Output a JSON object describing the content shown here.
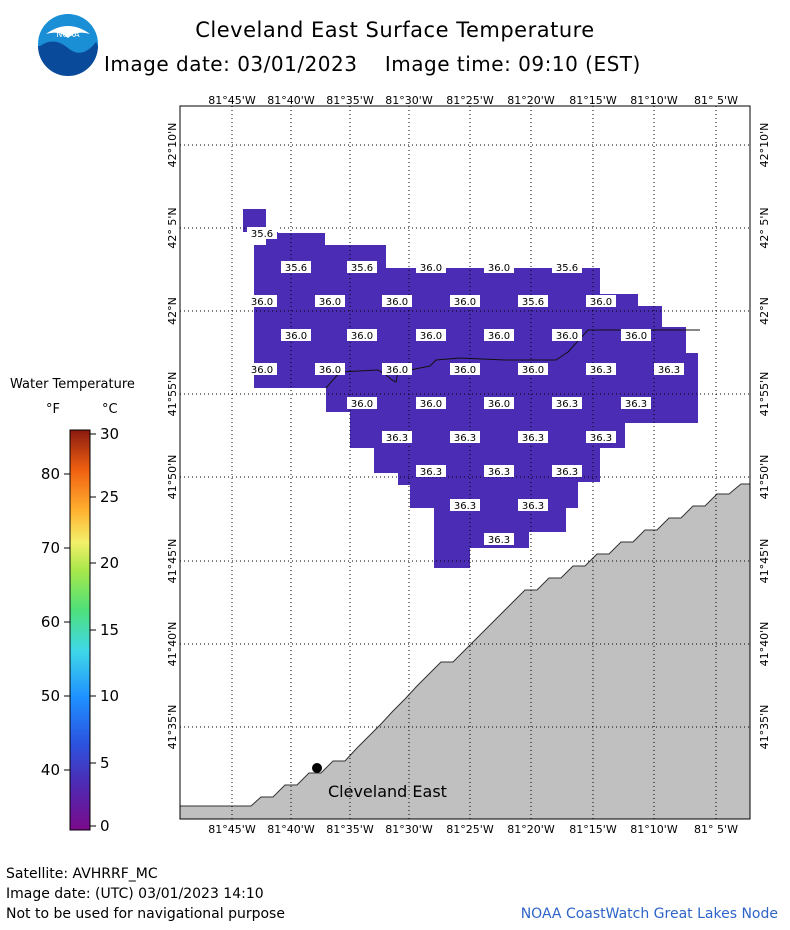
{
  "header": {
    "title": "Cleveland East Surface Temperature",
    "image_date_label": "Image date: 03/01/2023",
    "image_time_label": "Image time: 09:10 (EST)",
    "logo_text": "NOAA"
  },
  "map": {
    "lon_labels": [
      "81°45'W",
      "81°40'W",
      "81°35'W",
      "81°30'W",
      "81°25'W",
      "81°20'W",
      "81°15'W",
      "81°10'W",
      "81° 5'W"
    ],
    "lat_labels": [
      "42°10'N",
      "42° 5'N",
      "42°N",
      "41°55'N",
      "41°50'N",
      "41°45'N",
      "41°40'N",
      "41°35'N"
    ],
    "station": {
      "name": "Cleveland East"
    },
    "water_color": "#4b2cb5",
    "land_color": "#c0c0c0",
    "temperature_labels": [
      {
        "row": 0,
        "values": [
          "35.6"
        ]
      },
      {
        "row": 1,
        "values": [
          "35.6",
          "35.6",
          "36.0",
          "36.0",
          "35.6"
        ]
      },
      {
        "row": 2,
        "values": [
          "36.0",
          "36.0",
          "36.0",
          "36.0",
          "35.6",
          "36.0"
        ]
      },
      {
        "row": 3,
        "values": [
          "36.0",
          "36.0",
          "36.0",
          "36.0",
          "36.0",
          "36.0"
        ]
      },
      {
        "row": 4,
        "values": [
          "36.0",
          "36.0",
          "36.0",
          "36.0",
          "36.0",
          "36.3",
          "36.3"
        ]
      },
      {
        "row": 5,
        "values": [
          "36.0",
          "36.0",
          "36.0",
          "36.3",
          "36.3"
        ]
      },
      {
        "row": 6,
        "values": [
          "36.3",
          "36.3",
          "36.3",
          "36.3"
        ]
      },
      {
        "row": 7,
        "values": [
          "36.3",
          "36.3",
          "36.3"
        ]
      },
      {
        "row": 8,
        "values": [
          "36.3",
          "36.3"
        ]
      },
      {
        "row": 9,
        "values": [
          "36.3"
        ]
      }
    ]
  },
  "legend": {
    "title": "Water Temperature",
    "unit_f": "°F",
    "unit_c": "°C",
    "f_ticks": [
      "80",
      "70",
      "60",
      "50",
      "40"
    ],
    "c_ticks": [
      "30",
      "25",
      "20",
      "15",
      "10",
      "5",
      "0"
    ]
  },
  "footer": {
    "satellite": "Satellite: AVHRRF_MC",
    "utc_date": "Image date: (UTC) 03/01/2023  14:10",
    "disclaimer": "Not to be used for navigational purpose",
    "credit": "NOAA CoastWatch Great Lakes Node"
  }
}
